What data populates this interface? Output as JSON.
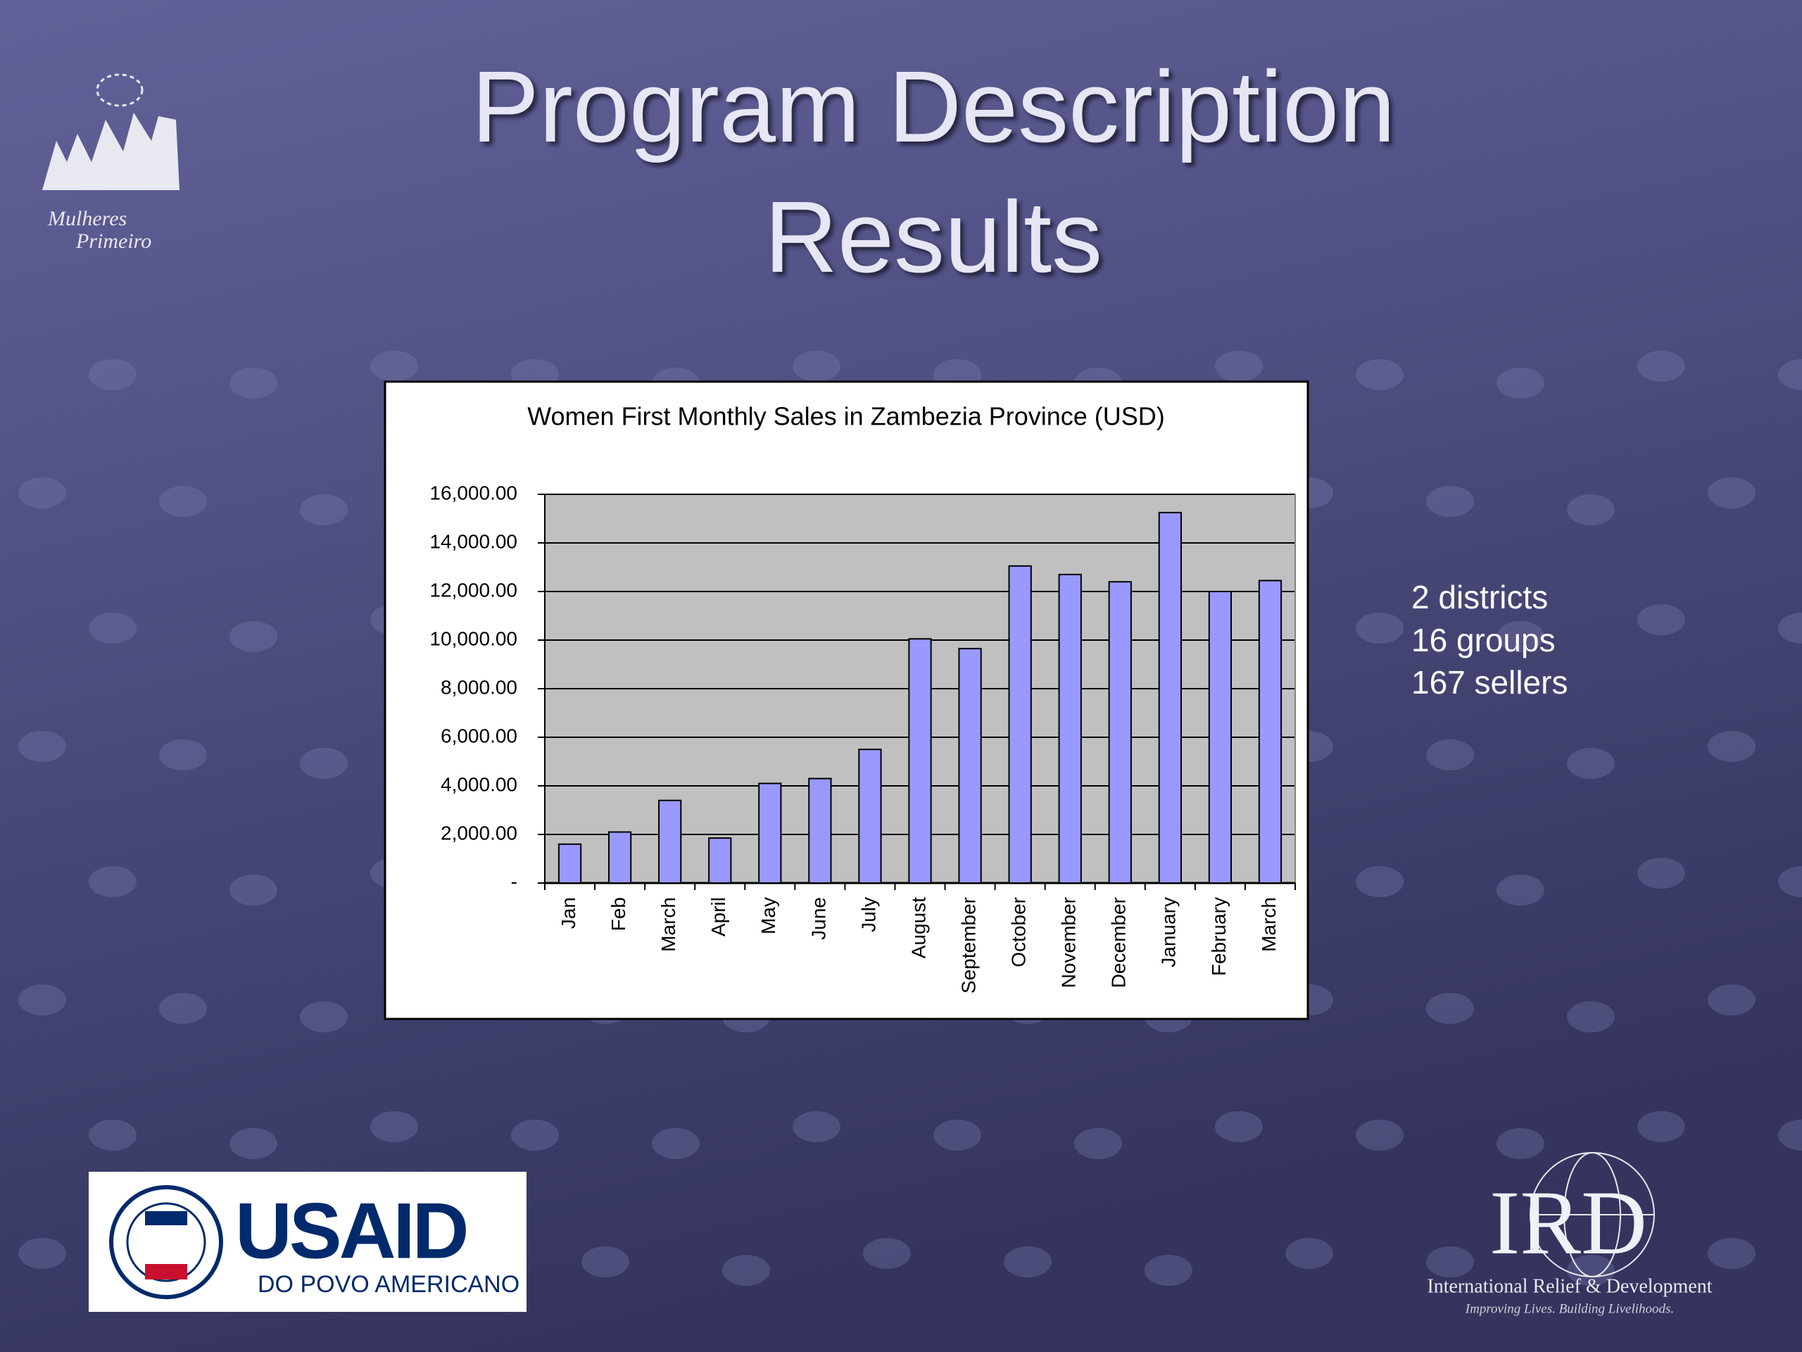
{
  "slide": {
    "title_lines": [
      "Program Description",
      "Results"
    ],
    "bullets": [
      "2 districts",
      "16 groups",
      "167 sellers"
    ],
    "logos": {
      "mulheres": [
        "Mulheres",
        "Primeiro"
      ],
      "usaid": {
        "name": "USAID",
        "tagline": "DO POVO AMERICANO"
      },
      "ird": {
        "name": "IRD",
        "full": "International Relief & Development",
        "slogan": "Improving Lives. Building Livelihoods."
      }
    }
  },
  "chart_data": {
    "type": "bar",
    "title": "Women First Monthly Sales in Zambezia Province (USD)",
    "categories": [
      "Jan",
      "Feb",
      "March",
      "April",
      "May",
      "June",
      "July",
      "August",
      "September",
      "October",
      "November",
      "December",
      "January",
      "February",
      "March"
    ],
    "values": [
      1600,
      2100,
      3400,
      1850,
      4100,
      4300,
      5500,
      10050,
      9650,
      13050,
      12700,
      12400,
      15250,
      12000,
      12450
    ],
    "color": "#9999ff",
    "ylim": [
      0,
      16000
    ],
    "yticks": [
      {
        "value": 0,
        "label": "-"
      },
      {
        "value": 2000,
        "label": "2,000.00"
      },
      {
        "value": 4000,
        "label": "4,000.00"
      },
      {
        "value": 6000,
        "label": "6,000.00"
      },
      {
        "value": 8000,
        "label": "8,000.00"
      },
      {
        "value": 10000,
        "label": "10,000.00"
      },
      {
        "value": 12000,
        "label": "12,000.00"
      },
      {
        "value": 14000,
        "label": "14,000.00"
      },
      {
        "value": 16000,
        "label": "16,000.00"
      }
    ],
    "grid": true
  }
}
